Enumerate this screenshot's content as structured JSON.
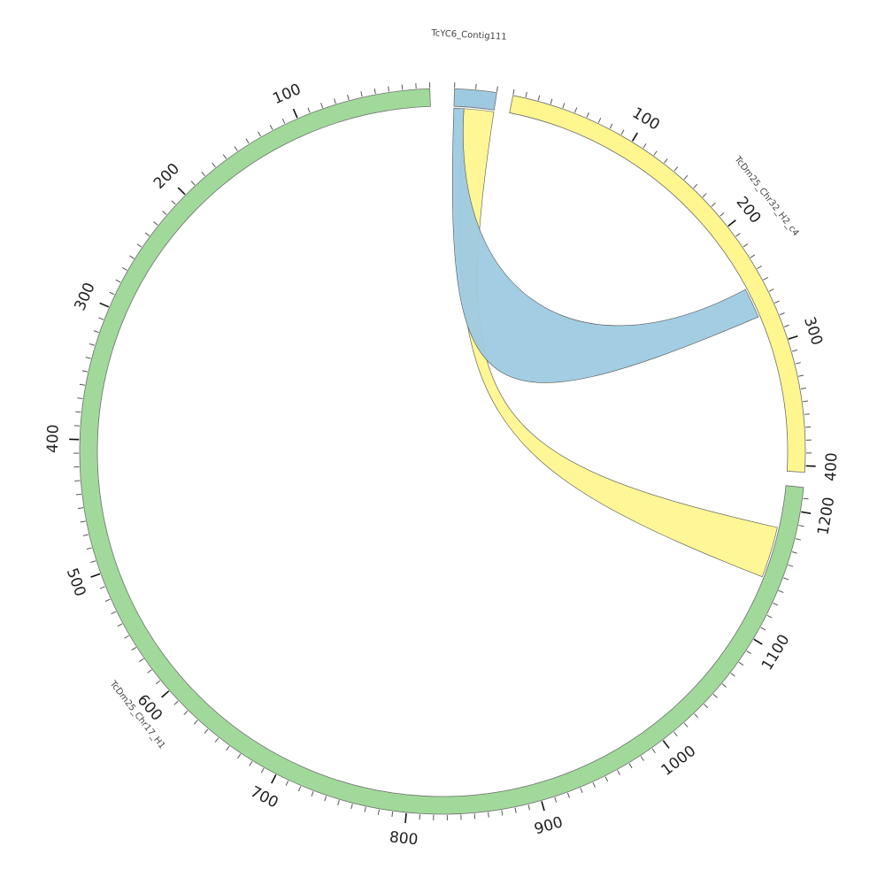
{
  "segments": [
    {
      "id": "chr17",
      "name": "TcDm25_Chr17_H1",
      "length": 1218,
      "color": "#a1d99b",
      "tick_labels": [
        "100",
        "200",
        "300",
        "400",
        "500",
        "600",
        "700",
        "800",
        "900",
        "1000",
        "1100",
        "1200"
      ]
    },
    {
      "id": "contig",
      "name": "TcYC6_Contig111",
      "length": 20,
      "color": "#9ecae1",
      "tick_labels": []
    },
    {
      "id": "chr32",
      "name": "TcDm25_Chr32_H2_c4",
      "length": 405,
      "color": "#fff68f",
      "tick_labels": [
        "100",
        "200",
        "300",
        "400"
      ]
    }
  ],
  "links": [
    {
      "color": "#fff68f",
      "from": {
        "segment": "chr17",
        "start": 1145,
        "end": 1185
      },
      "to": {
        "segment": "contig",
        "start": 5,
        "end": 20
      }
    },
    {
      "color": "#9ecae1",
      "from": {
        "segment": "contig",
        "start": 0,
        "end": 5
      },
      "to": {
        "segment": "chr32",
        "start": 250,
        "end": 275
      }
    }
  ]
}
